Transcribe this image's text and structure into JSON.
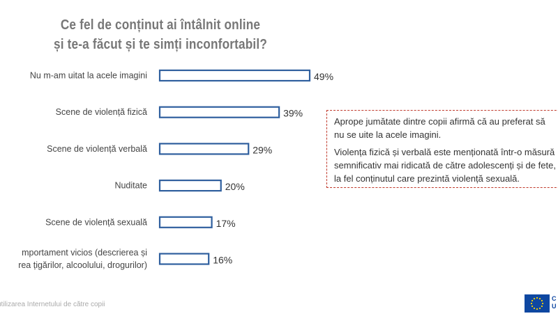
{
  "title": {
    "line1": "Ce fel de conținut ai întâlnit online",
    "line2": "și te-a făcut și te simți inconfortabil?"
  },
  "chart_data": {
    "type": "bar",
    "orientation": "horizontal",
    "categories": [
      [
        "Nu m-am uitat la acele imagini"
      ],
      [
        "Scene de violență fizică"
      ],
      [
        "Scene de violență verbală"
      ],
      [
        "Nuditate"
      ],
      [
        "Scene de violență sexuală"
      ],
      [
        "mportament vicios (descrierea și",
        "rea țigărilor, alcoolului, drogurilor)"
      ]
    ],
    "values": [
      49,
      39,
      29,
      20,
      17,
      16
    ],
    "value_labels": [
      "49%",
      "39%",
      "29%",
      "20%",
      "17%",
      "16%"
    ],
    "bar_fill": "#ffffff",
    "bar_stroke": "#2f5f9e",
    "xlim": [
      0,
      49
    ]
  },
  "note": {
    "p1_line1": "Aprope jumătate dintre copii afirmă că au preferat să",
    "p1_line2": "nu se uite la acele imagini.",
    "p2_line1": "Violența fizică și verbală este menționată într-o măsură",
    "p2_line2": "semnificativ mai ridicată de către adolescenți și de fete,",
    "p2_line3": "la fel conținutul care prezintă violență sexuală.",
    "border_color": "#c0392b"
  },
  "footer": {
    "text": "utilizarea Internetului de către copii"
  },
  "logo": {
    "icon": "eu-flag-icon",
    "text_line1": "C",
    "text_line2": "U"
  }
}
